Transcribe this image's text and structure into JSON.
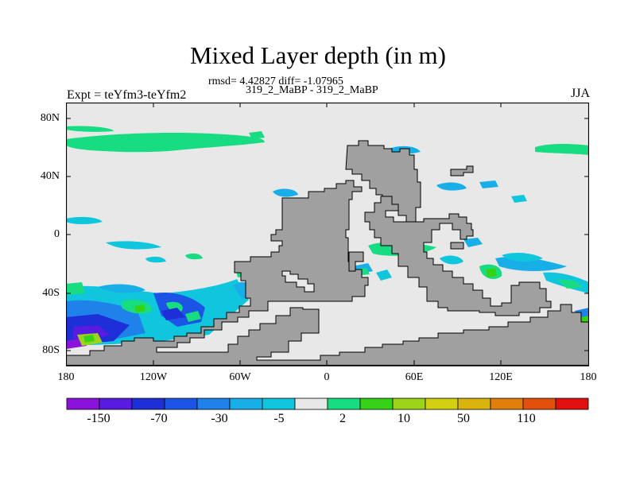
{
  "title": "Mixed Layer depth (in m)",
  "stats_line": "rmsd= 4.42827 diff= -1.07965",
  "experiment_label": "Expt = teYfm3-teYfm2",
  "experiment_names": "319_2_MaBP - 319_2_MaBP",
  "season": "JJA",
  "lat_ticks": [
    "80N",
    "40N",
    "0",
    "40S",
    "80S"
  ],
  "lon_ticks": [
    "180",
    "120W",
    "60W",
    "0",
    "60E",
    "120E",
    "180"
  ],
  "colorbar": {
    "colors": [
      "#8a12dc",
      "#5a1be0",
      "#1f2fd8",
      "#1c55e6",
      "#1f82ea",
      "#18aee8",
      "#10c6dc",
      "#e8e8e8",
      "#18dc82",
      "#36d218",
      "#9bd418",
      "#d2d010",
      "#d8b40c",
      "#e0800c",
      "#e2500c",
      "#e01010"
    ],
    "labels": [
      "-150",
      "-70",
      "-30",
      "-5",
      "2",
      "10",
      "50",
      "110"
    ]
  },
  "colors": {
    "land": "#a0a0a0",
    "ocean_neutral": "#e8e8e8"
  }
}
